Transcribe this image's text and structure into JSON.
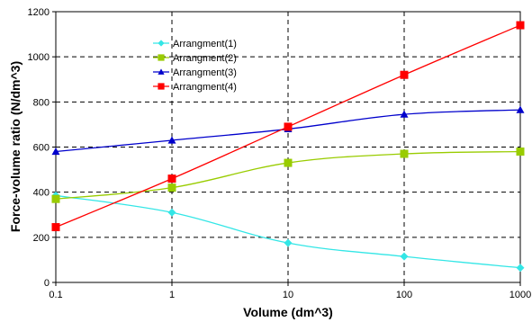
{
  "chart_data": {
    "type": "line",
    "xlabel": "Volume (dm^3)",
    "ylabel": "Force-volume ratio (N/dm^3)",
    "x_scale": "log",
    "x": [
      0.1,
      1,
      10,
      100,
      1000
    ],
    "x_tick_labels": [
      "0.1",
      "1",
      "10",
      "100",
      "1000"
    ],
    "ylim": [
      0,
      1200
    ],
    "y_ticks": [
      0,
      200,
      400,
      600,
      800,
      1000,
      1200
    ],
    "grid": true,
    "legend_position": "top-left",
    "series": [
      {
        "name": "Arrangment(1)",
        "values": [
          385,
          310,
          175,
          115,
          65
        ],
        "color": "#33e6e6",
        "marker": "diamond"
      },
      {
        "name": "Arrangment(2)",
        "values": [
          370,
          420,
          530,
          570,
          580
        ],
        "color": "#99cc00",
        "marker": "square"
      },
      {
        "name": "Arrangment(3)",
        "values": [
          580,
          630,
          680,
          745,
          765
        ],
        "color": "#0000cc",
        "marker": "triangle"
      },
      {
        "name": "Arrangment(4)",
        "values": [
          245,
          460,
          690,
          920,
          1140
        ],
        "color": "#ff0000",
        "marker": "square"
      }
    ]
  }
}
